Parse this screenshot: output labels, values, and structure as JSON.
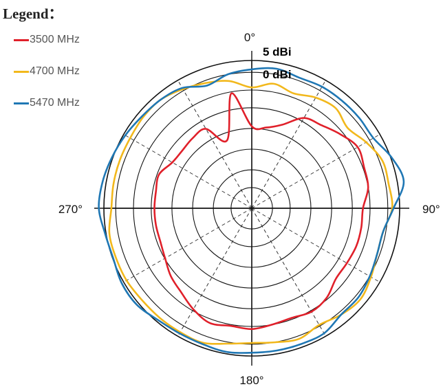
{
  "legend": {
    "title": "Legend：",
    "items": [
      {
        "label": "3500 MHz",
        "color": "#e0202a"
      },
      {
        "label": "4700 MHz",
        "color": "#f2b81c"
      },
      {
        "label": "5470 MHz",
        "color": "#1f77b4"
      }
    ]
  },
  "chart_data": {
    "type": "line",
    "subtype": "polar",
    "grid": true,
    "legend_placement": "top-left",
    "angle_labels": [
      {
        "angle": 0,
        "text": "0°"
      },
      {
        "angle": 90,
        "text": "90°"
      },
      {
        "angle": 180,
        "text": "180°"
      },
      {
        "angle": 270,
        "text": "270°"
      }
    ],
    "ring_labels": [
      "5 dBi",
      "0 dBi"
    ],
    "series": [
      {
        "name": "3500 MHz",
        "color": "#e0202a",
        "angles": [
          0,
          10,
          20,
          30,
          40,
          50,
          60,
          70,
          80,
          90,
          100,
          110,
          120,
          130,
          140,
          150,
          160,
          170,
          180,
          190,
          200,
          210,
          220,
          230,
          240,
          250,
          260,
          270,
          280,
          290,
          300,
          310,
          320,
          330,
          340,
          350
        ],
        "radius": [
          0.59,
          0.59,
          0.64,
          0.75,
          0.78,
          0.83,
          0.88,
          0.86,
          0.85,
          0.8,
          0.8,
          0.8,
          0.79,
          0.79,
          0.84,
          0.86,
          0.84,
          0.85,
          0.87,
          0.86,
          0.88,
          0.84,
          0.79,
          0.76,
          0.72,
          0.7,
          0.7,
          0.7,
          0.7,
          0.71,
          0.66,
          0.65,
          0.66,
          0.66,
          0.52,
          0.84
        ]
      },
      {
        "name": "4700 MHz",
        "color": "#f2b81c",
        "angles": [
          0,
          10,
          20,
          30,
          40,
          50,
          60,
          70,
          80,
          90,
          100,
          110,
          120,
          130,
          140,
          150,
          160,
          170,
          180,
          190,
          200,
          210,
          220,
          230,
          240,
          250,
          260,
          270,
          280,
          290,
          300,
          310,
          320,
          330,
          340,
          350
        ],
        "radius": [
          0.87,
          0.91,
          0.88,
          0.92,
          0.94,
          0.9,
          0.95,
          1.0,
          1.0,
          1.01,
          0.96,
          0.96,
          0.99,
          1.02,
          1.0,
          0.97,
          1.0,
          0.98,
          0.97,
          0.99,
          1.03,
          1.03,
          1.03,
          1.03,
          1.04,
          1.04,
          1.04,
          1.01,
          1.01,
          1.01,
          1.01,
          1.02,
          1.02,
          0.99,
          0.96,
          0.93
        ]
      },
      {
        "name": "5470 MHz",
        "color": "#1f77b4",
        "angles": [
          0,
          10,
          20,
          30,
          40,
          50,
          60,
          70,
          80,
          90,
          100,
          110,
          120,
          130,
          140,
          150,
          160,
          170,
          180,
          190,
          200,
          210,
          220,
          230,
          240,
          250,
          260,
          270,
          280,
          290,
          300,
          310,
          320,
          330,
          340,
          350
        ],
        "radius": [
          1.0,
          1.02,
          1.0,
          1.01,
          1.01,
          1.01,
          1.01,
          1.07,
          1.11,
          1.02,
          0.96,
          0.96,
          0.98,
          1.0,
          1.0,
          1.04,
          1.04,
          1.04,
          1.04,
          1.05,
          1.04,
          1.04,
          1.05,
          1.08,
          1.08,
          1.06,
          1.07,
          1.1,
          1.09,
          1.07,
          1.05,
          1.03,
          1.02,
          1.0,
          0.94,
          0.98
        ]
      }
    ]
  }
}
